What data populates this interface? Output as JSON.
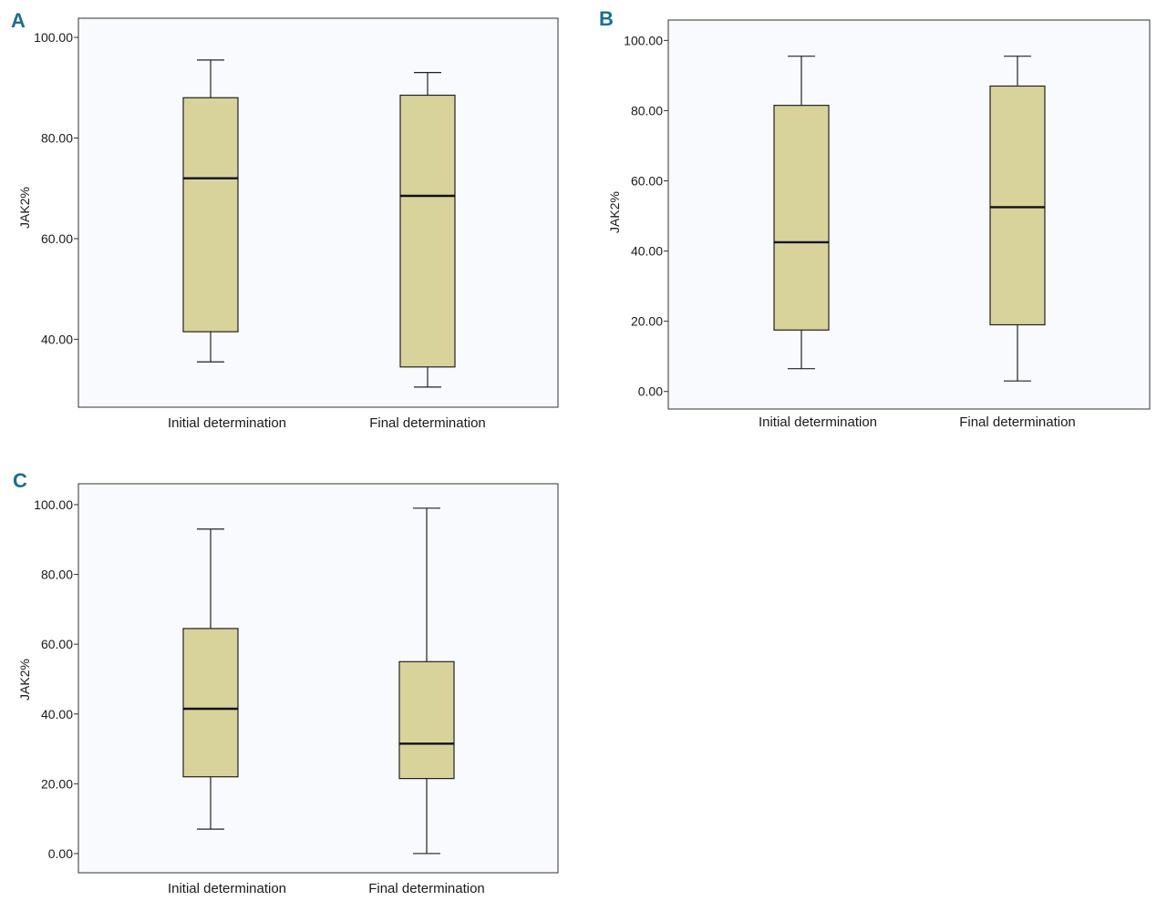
{
  "figure": {
    "panel_color": "#1a6e96",
    "plot_bg": "#f8fafd",
    "box_fill": "#d8d39b"
  },
  "chart_data": [
    {
      "panel": "A",
      "type": "boxplot",
      "xlabel": "",
      "ylabel": "JAK2%",
      "ylim": [
        26.5,
        103.8
      ],
      "yticks": [
        40,
        60,
        80,
        100
      ],
      "ytick_labels": [
        "40.00",
        "60.00",
        "80.00",
        "100.00"
      ],
      "categories": [
        "Initial determination",
        "Final determination"
      ],
      "boxes": [
        {
          "min": 35.5,
          "q1": 41.5,
          "median": 72.0,
          "q3": 88.0,
          "max": 95.5
        },
        {
          "min": 30.5,
          "q1": 34.5,
          "median": 68.5,
          "q3": 88.5,
          "max": 93.0
        }
      ]
    },
    {
      "panel": "B",
      "type": "boxplot",
      "xlabel": "",
      "ylabel": "JAK2%",
      "ylim": [
        -5.0,
        105.8
      ],
      "yticks": [
        0,
        20,
        40,
        60,
        80,
        100
      ],
      "ytick_labels": [
        "0.00",
        "20.00",
        "40.00",
        "60.00",
        "80.00",
        "100.00"
      ],
      "categories": [
        "Initial determination",
        "Final determination"
      ],
      "boxes": [
        {
          "min": 6.5,
          "q1": 17.5,
          "median": 42.5,
          "q3": 81.5,
          "max": 95.5
        },
        {
          "min": 3.0,
          "q1": 19.0,
          "median": 52.5,
          "q3": 87.0,
          "max": 95.5
        }
      ]
    },
    {
      "panel": "C",
      "type": "boxplot",
      "xlabel": "",
      "ylabel": "JAK2%",
      "ylim": [
        -5.5,
        106.0
      ],
      "yticks": [
        0,
        20,
        40,
        60,
        80,
        100
      ],
      "ytick_labels": [
        "0.00",
        "20.00",
        "40.00",
        "60.00",
        "80.00",
        "100.00"
      ],
      "categories": [
        "Initial determination",
        "Final determination"
      ],
      "boxes": [
        {
          "min": 7.0,
          "q1": 22.0,
          "median": 41.5,
          "q3": 64.5,
          "max": 93.0
        },
        {
          "min": 0.0,
          "q1": 21.5,
          "median": 31.5,
          "q3": 55.0,
          "max": 99.0
        }
      ]
    }
  ]
}
